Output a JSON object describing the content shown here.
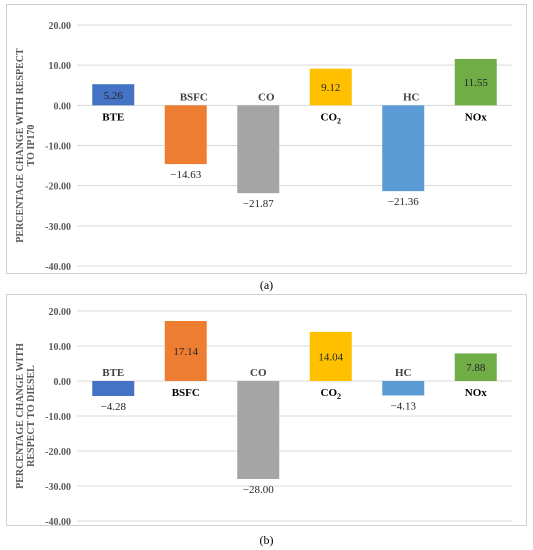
{
  "chart_data": [
    {
      "type": "bar",
      "caption": "(a)",
      "ylabel_lines": [
        "PERCENTAGE CHANGE WITH RESPECT",
        "TO IP170"
      ],
      "ylim": [
        -40,
        20
      ],
      "yticks": [
        "20.00",
        "10.00",
        "0.00",
        "-10.00",
        "-20.00",
        "-30.00",
        "-40.00"
      ],
      "ytick_values": [
        20,
        10,
        0,
        -10,
        -20,
        -30,
        -40
      ],
      "categories": [
        "BTE",
        "BSFC",
        "CO",
        "CO2",
        "HC",
        "NOx"
      ],
      "category_labels": [
        {
          "main": "BTE",
          "sub": ""
        },
        {
          "main": "BSFC",
          "sub": ""
        },
        {
          "main": "CO",
          "sub": ""
        },
        {
          "main": "CO",
          "sub": "2"
        },
        {
          "main": "HC",
          "sub": ""
        },
        {
          "main": "NOx",
          "sub": ""
        }
      ],
      "values": [
        5.26,
        -14.63,
        -21.87,
        9.12,
        -21.36,
        11.55
      ],
      "value_labels": [
        "5.26",
        "−14.63",
        "−21.87",
        "9.12",
        "−21.36",
        "11.55"
      ],
      "colors": [
        "#4472C4",
        "#ED7D31",
        "#A5A5A5",
        "#FFC000",
        "#5B9BD5",
        "#70AD47"
      ],
      "grid": true
    },
    {
      "type": "bar",
      "caption": "(b)",
      "ylabel_lines": [
        "PERCENTAGE CHANGE WITH",
        "RESPECT TO DIESEL"
      ],
      "ylim": [
        -40,
        20
      ],
      "yticks": [
        "20.00",
        "10.00",
        "0.00",
        "-10.00",
        "-20.00",
        "-30.00",
        "-40.00"
      ],
      "ytick_values": [
        20,
        10,
        0,
        -10,
        -20,
        -30,
        -40
      ],
      "categories": [
        "BTE",
        "BSFC",
        "CO",
        "CO2",
        "HC",
        "NOx"
      ],
      "category_labels": [
        {
          "main": "BTE",
          "sub": ""
        },
        {
          "main": "BSFC",
          "sub": ""
        },
        {
          "main": "CO",
          "sub": ""
        },
        {
          "main": "CO",
          "sub": "2"
        },
        {
          "main": "HC",
          "sub": ""
        },
        {
          "main": "NOx",
          "sub": ""
        }
      ],
      "values": [
        -4.28,
        17.14,
        -28.0,
        14.04,
        -4.13,
        7.88
      ],
      "value_labels": [
        "−4.28",
        "17.14",
        "−28.00",
        "14.04",
        "−4.13",
        "7.88"
      ],
      "colors": [
        "#4472C4",
        "#ED7D31",
        "#A5A5A5",
        "#FFC000",
        "#5B9BD5",
        "#70AD47"
      ],
      "grid": true
    }
  ]
}
